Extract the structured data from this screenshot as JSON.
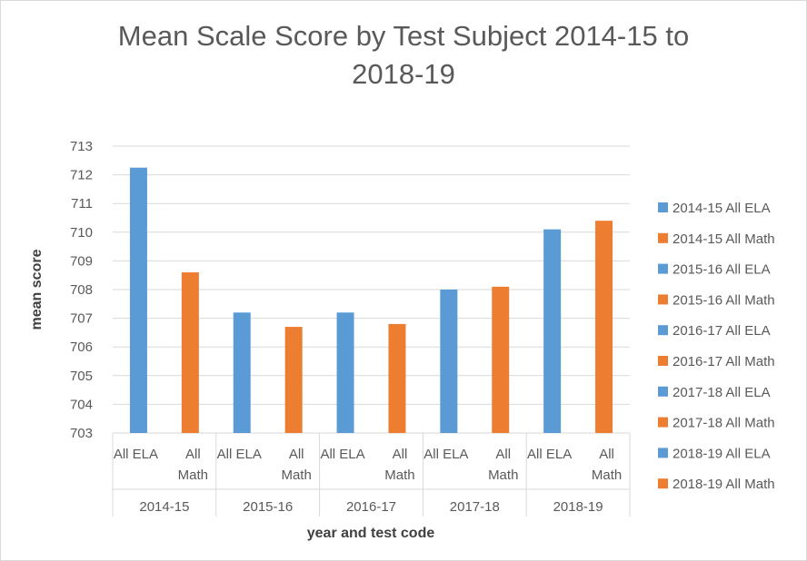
{
  "chart_data": {
    "type": "bar",
    "title_lines": [
      "Mean Scale Score by Test Subject 2014-15 to",
      "2018-19"
    ],
    "xlabel": "year and test code",
    "ylabel": "mean score",
    "ylim": [
      703,
      713
    ],
    "yticks": [
      703,
      704,
      705,
      706,
      707,
      708,
      709,
      710,
      711,
      712,
      713
    ],
    "grid": true,
    "legend_position": "right",
    "groups": [
      {
        "label": "2014-15",
        "bars": [
          {
            "label": "All ELA",
            "value": 712.25,
            "color": "#5b9bd5",
            "legend": "2014-15 All ELA"
          },
          {
            "label": "All Math",
            "value": 708.6,
            "color": "#ed7d31",
            "legend": "2014-15 All Math"
          }
        ]
      },
      {
        "label": "2015-16",
        "bars": [
          {
            "label": "All ELA",
            "value": 707.2,
            "color": "#5b9bd5",
            "legend": "2015-16 All ELA"
          },
          {
            "label": "All Math",
            "value": 706.7,
            "color": "#ed7d31",
            "legend": "2015-16 All Math"
          }
        ]
      },
      {
        "label": "2016-17",
        "bars": [
          {
            "label": "All ELA",
            "value": 707.2,
            "color": "#5b9bd5",
            "legend": "2016-17 All ELA"
          },
          {
            "label": "All Math",
            "value": 706.8,
            "color": "#ed7d31",
            "legend": "2016-17 All Math"
          }
        ]
      },
      {
        "label": "2017-18",
        "bars": [
          {
            "label": "All ELA",
            "value": 708.0,
            "color": "#5b9bd5",
            "legend": "2017-18 All ELA"
          },
          {
            "label": "All Math",
            "value": 708.1,
            "color": "#ed7d31",
            "legend": "2017-18 All Math"
          }
        ]
      },
      {
        "label": "2018-19",
        "bars": [
          {
            "label": "All ELA",
            "value": 710.1,
            "color": "#5b9bd5",
            "legend": "2018-19 All ELA"
          },
          {
            "label": "All Math",
            "value": 710.4,
            "color": "#ed7d31",
            "legend": "2018-19 All Math"
          }
        ]
      }
    ]
  }
}
